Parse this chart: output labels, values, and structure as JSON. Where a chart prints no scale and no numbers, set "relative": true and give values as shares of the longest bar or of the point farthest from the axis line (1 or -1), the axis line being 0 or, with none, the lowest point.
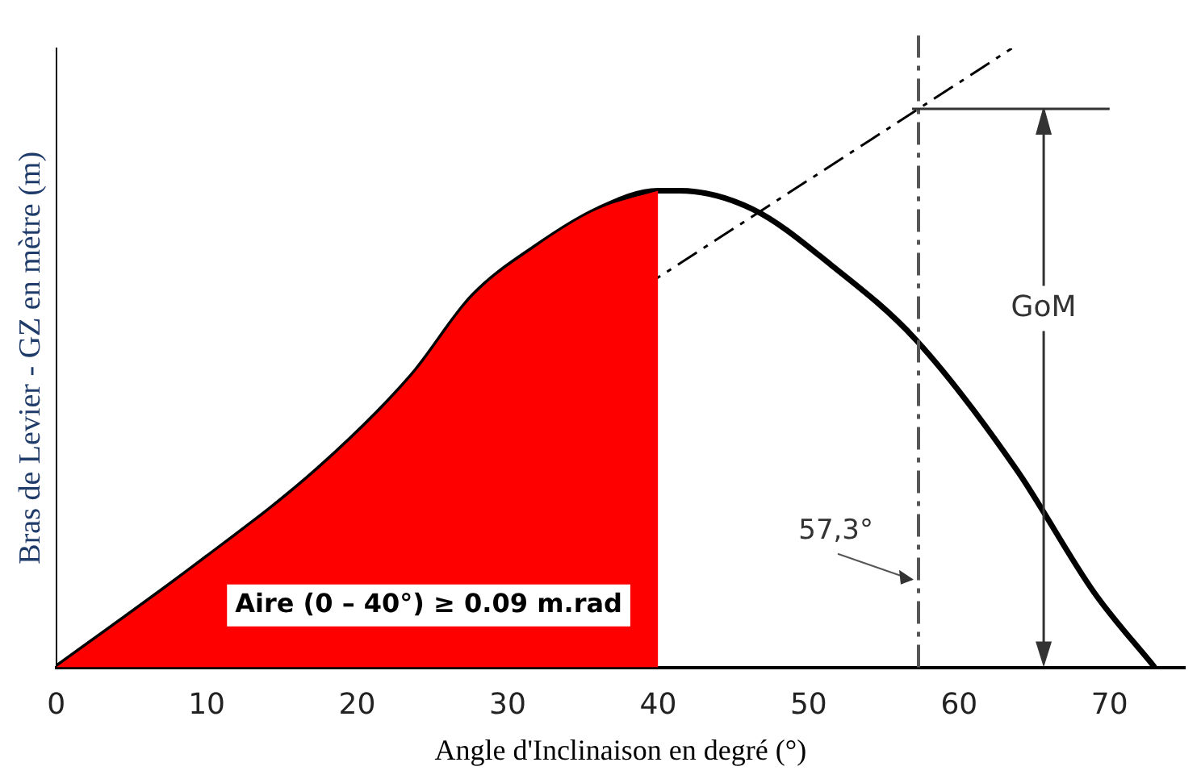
{
  "chart_data": {
    "type": "line",
    "relative": true,
    "xlabel": "Angle d'Inclinaison en degré (°)",
    "ylabel": "Bras de Levier - GZ en mètre (m)",
    "xlim": [
      0,
      75
    ],
    "xticks": [
      0,
      10,
      20,
      30,
      40,
      50,
      60,
      70
    ],
    "grid": false,
    "legend": false,
    "marker": "none",
    "series": [
      {
        "type": "area",
        "color": "#ff0000",
        "x": [
          0,
          9.6,
          17.4,
          23.6,
          27.7,
          31.9,
          36,
          40
        ],
        "values": [
          0,
          0.17,
          0.32,
          0.47,
          0.6,
          0.68,
          0.74,
          0.77
        ]
      },
      {
        "type": "line",
        "color": "#000000",
        "x": [
          0,
          9.6,
          17.4,
          23.6,
          27.7,
          31.9,
          36,
          40,
          41.4,
          46.3,
          51.5,
          57.1,
          63.8,
          69,
          73
        ],
        "values": [
          0,
          0.17,
          0.32,
          0.47,
          0.6,
          0.68,
          0.74,
          0.77,
          0.77,
          0.74,
          0.65,
          0.53,
          0.32,
          0.12,
          0
        ]
      },
      {
        "type": "line",
        "color": "#000000",
        "line_style": "dashed",
        "x": [
          0,
          63.5
        ],
        "values": [
          0,
          1
        ]
      }
    ],
    "ref_lines": [
      {
        "axis": "x",
        "value": 57.3,
        "label": "57,3°",
        "line_style": "dashed"
      }
    ],
    "annotations": [
      "Aire (0 – 40°) ≥ 0.09 m.rad",
      "GoM"
    ]
  }
}
